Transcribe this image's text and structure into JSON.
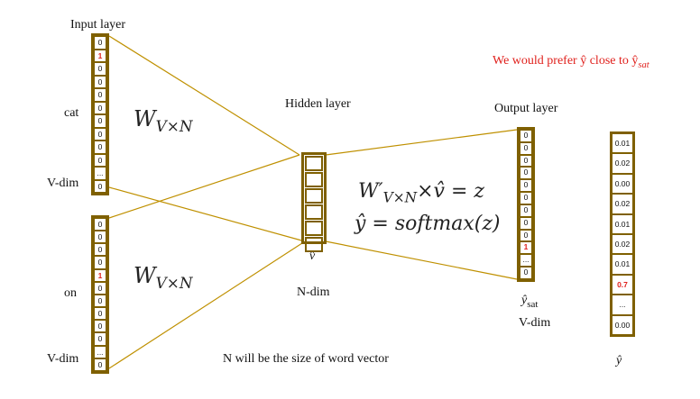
{
  "labels": {
    "input_layer": "Input layer",
    "hidden_layer": "Hidden layer",
    "output_layer": "Output layer",
    "cat": "cat",
    "on": "on",
    "vdim_top": "V-dim",
    "vdim_bottom": "V-dim",
    "vdim_output": "V-dim",
    "ndim": "N-dim",
    "vhat": "v̂",
    "ysat": "ŷ",
    "ysat_sub": "sat",
    "yhat_bottom": "ŷ",
    "footer": "N will be the size of word vector"
  },
  "formulas": {
    "w_top": "W",
    "w_top_sub": "V×N",
    "w_bottom": "W",
    "w_bottom_sub": "V×N",
    "eq1_head": "W′",
    "eq1_sub": "V×N",
    "eq1_tail": "×v̂ = z",
    "eq2": "ŷ = softmax(z)"
  },
  "note": {
    "text": "We would prefer ŷ close to ŷ",
    "sub": "sat"
  },
  "input_cat": [
    "0",
    "1",
    "0",
    "0",
    "0",
    "0",
    "0",
    "0",
    "0",
    "0",
    "...",
    "0"
  ],
  "input_on": [
    "0",
    "0",
    "0",
    "0",
    "1",
    "0",
    "0",
    "0",
    "0",
    "0",
    "...",
    "0"
  ],
  "hidden": [
    "",
    "",
    "",
    "",
    "",
    ""
  ],
  "output_sat": [
    "0",
    "0",
    "0",
    "0",
    "0",
    "0",
    "0",
    "0",
    "0",
    "1",
    "...",
    "0"
  ],
  "probabilities": [
    "0.01",
    "0.02",
    "0.00",
    "0.02",
    "0.01",
    "0.02",
    "0.01",
    "0.7",
    "...",
    "0.00"
  ],
  "hot_values": [
    "1",
    "0.7"
  ],
  "colors": {
    "box": "#7f6000",
    "line": "#bf9000",
    "highlight": "#e0201c"
  }
}
